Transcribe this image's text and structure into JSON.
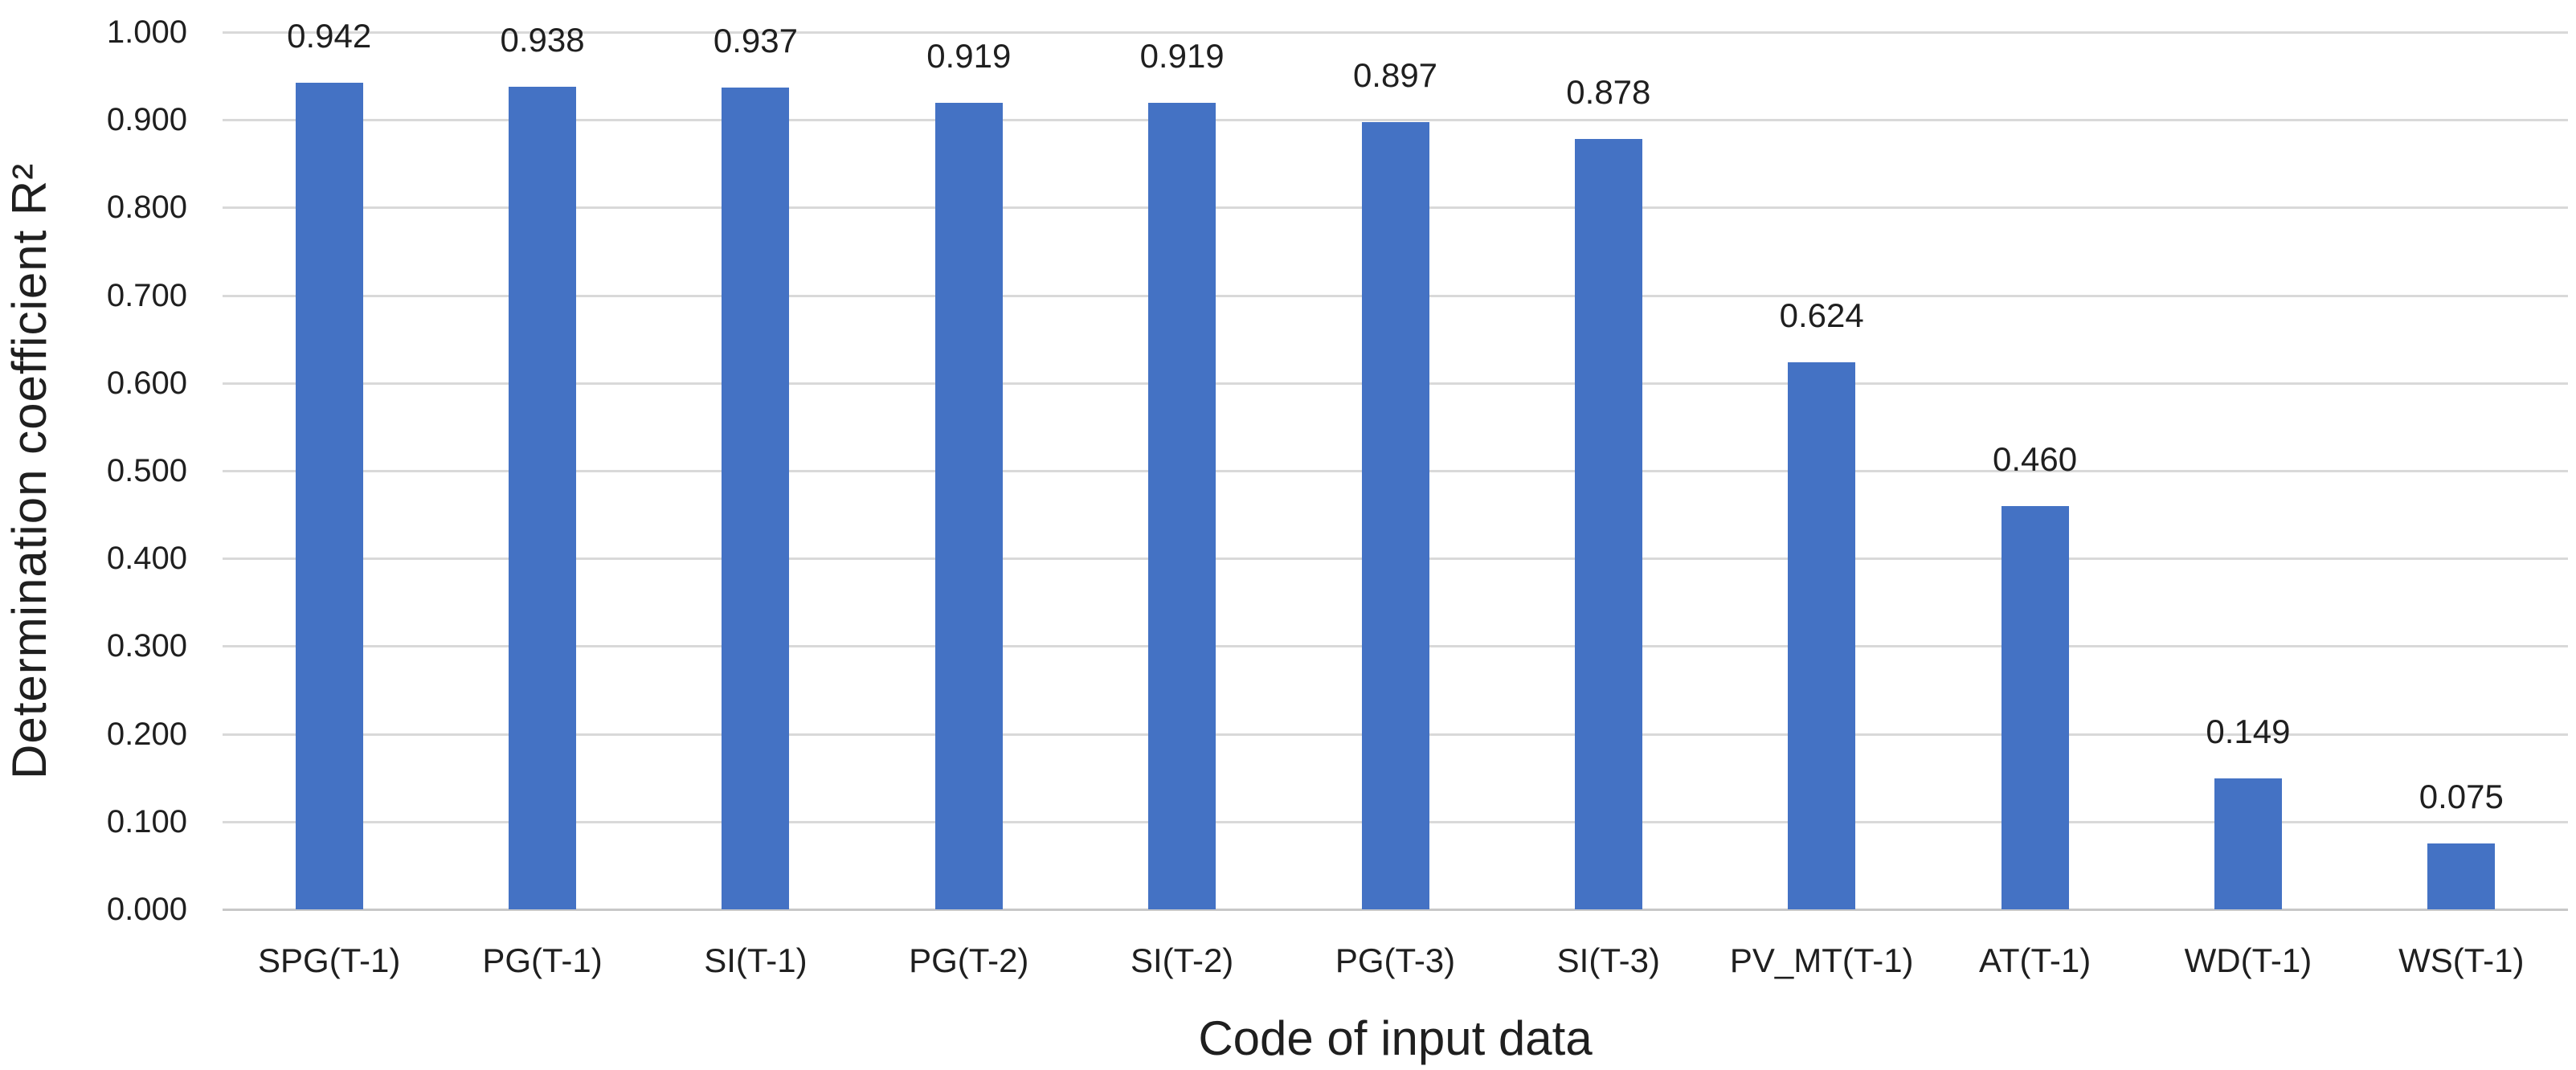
{
  "chart_data": {
    "type": "bar",
    "title": "",
    "xlabel": "Code of input data",
    "ylabel": "Determination coefficient R²",
    "categories": [
      "SPG(T-1)",
      "PG(T-1)",
      "SI(T-1)",
      "PG(T-2)",
      "SI(T-2)",
      "PG(T-3)",
      "SI(T-3)",
      "PV_MT(T-1)",
      "AT(T-1)",
      "WD(T-1)",
      "WS(T-1)"
    ],
    "series": [
      {
        "name": "Determination coefficient R²",
        "values": [
          0.942,
          0.938,
          0.937,
          0.919,
          0.919,
          0.897,
          0.878,
          0.624,
          0.46,
          0.149,
          0.075
        ]
      }
    ],
    "value_labels": [
      "0.942",
      "0.938",
      "0.937",
      "0.919",
      "0.919",
      "0.897",
      "0.878",
      "0.624",
      "0.460",
      "0.149",
      "0.075"
    ],
    "y_tick_labels": [
      "0.000",
      "0.100",
      "0.200",
      "0.300",
      "0.400",
      "0.500",
      "0.600",
      "0.700",
      "0.800",
      "0.900",
      "1.000"
    ],
    "ylim": [
      0,
      1
    ],
    "y_tick_step": 0.1,
    "grid": true,
    "legend_position": "none",
    "colors": {
      "bar": "#4472C4",
      "gridline": "#D9D9D9",
      "axis_line": "#C8C8C8",
      "text": "#1F1F1F"
    }
  }
}
